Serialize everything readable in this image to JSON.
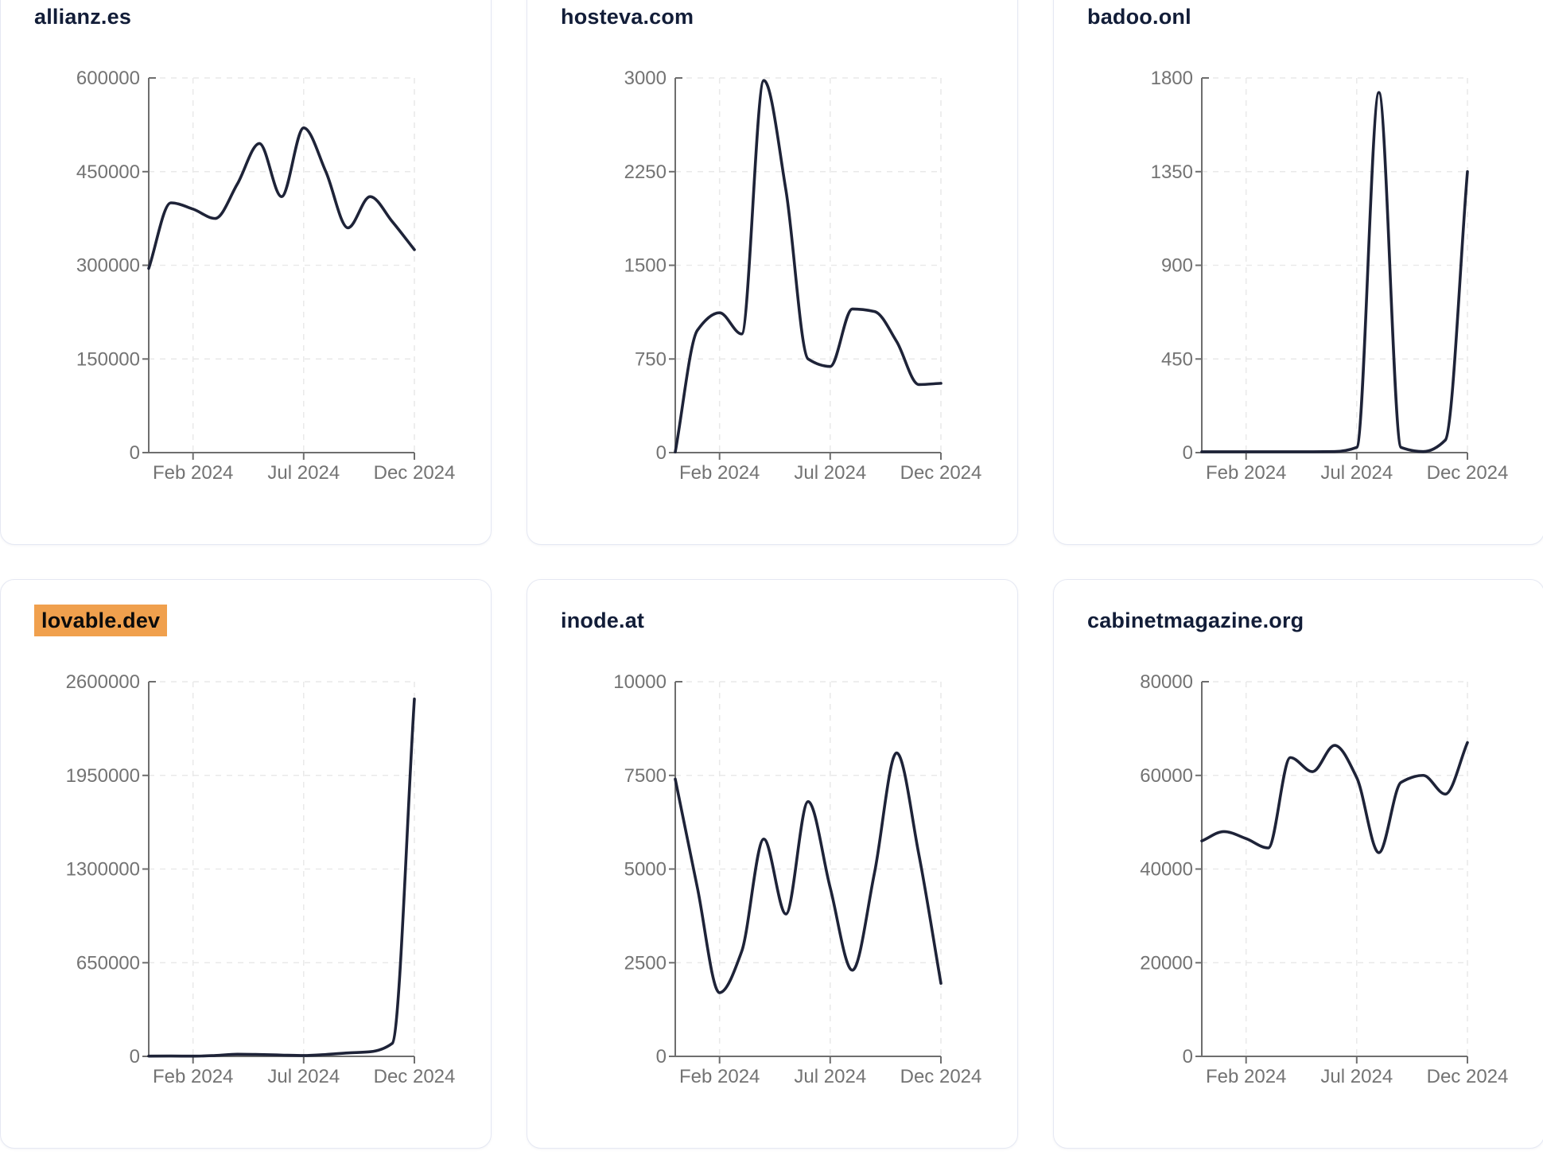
{
  "page": {
    "background": "#ffffff"
  },
  "theme": {
    "card_background": "#ffffff",
    "card_border": "#e5e8f3",
    "title_color": "#121d38",
    "line_color": "#1e2338",
    "axis_color": "#6e6e6e",
    "tick_label_color": "#737373",
    "grid_color": "#e9e9e9",
    "highlight_background": "#f0a04d",
    "highlight_text": "#0c0c0c"
  },
  "chart_data": [
    {
      "type": "line",
      "title": "allianz.es",
      "highlighted": false,
      "x": [
        "Dec 2023",
        "Jan 2024",
        "Feb 2024",
        "Mar 2024",
        "Apr 2024",
        "May 2024",
        "Jun 2024",
        "Jul 2024",
        "Aug 2024",
        "Sep 2024",
        "Oct 2024",
        "Nov 2024",
        "Dec 2024"
      ],
      "values": [
        295000,
        400000,
        390000,
        375000,
        430000,
        495000,
        410000,
        520000,
        450000,
        360000,
        410000,
        370000,
        325000
      ],
      "ylim": [
        0,
        600000
      ],
      "y_ticks": [
        0,
        150000,
        300000,
        450000,
        600000
      ],
      "x_tick_labels": [
        "Feb 2024",
        "Jul 2024",
        "Dec 2024"
      ],
      "x_tick_index": [
        2,
        7,
        12
      ],
      "grid": true
    },
    {
      "type": "line",
      "title": "hosteva.com",
      "highlighted": false,
      "x": [
        "Dec 2023",
        "Jan 2024",
        "Feb 2024",
        "Mar 2024",
        "Apr 2024",
        "May 2024",
        "Jun 2024",
        "Jul 2024",
        "Aug 2024",
        "Sep 2024",
        "Oct 2024",
        "Nov 2024",
        "Dec 2024"
      ],
      "values": [
        5,
        980,
        1120,
        950,
        2980,
        2100,
        750,
        690,
        1150,
        1130,
        890,
        545,
        555
      ],
      "ylim": [
        0,
        3000
      ],
      "y_ticks": [
        0,
        750,
        1500,
        2250,
        3000
      ],
      "x_tick_labels": [
        "Feb 2024",
        "Jul 2024",
        "Dec 2024"
      ],
      "x_tick_index": [
        2,
        7,
        12
      ],
      "grid": true
    },
    {
      "type": "line",
      "title": "badoo.onl",
      "highlighted": false,
      "x": [
        "Dec 2023",
        "Jan 2024",
        "Feb 2024",
        "Mar 2024",
        "Apr 2024",
        "May 2024",
        "Jun 2024",
        "Jul 2024",
        "Aug 2024",
        "Sep 2024",
        "Oct 2024",
        "Nov 2024",
        "Dec 2024"
      ],
      "values": [
        4,
        4,
        4,
        4,
        4,
        4,
        5,
        25,
        1730,
        25,
        5,
        60,
        1350
      ],
      "ylim": [
        0,
        1800
      ],
      "y_ticks": [
        0,
        450,
        900,
        1350,
        1800
      ],
      "x_tick_labels": [
        "Feb 2024",
        "Jul 2024",
        "Dec 2024"
      ],
      "x_tick_index": [
        2,
        7,
        12
      ],
      "grid": true
    },
    {
      "type": "line",
      "title": "lovable.dev",
      "highlighted": true,
      "x": [
        "Dec 2023",
        "Jan 2024",
        "Feb 2024",
        "Mar 2024",
        "Apr 2024",
        "May 2024",
        "Jun 2024",
        "Jul 2024",
        "Aug 2024",
        "Sep 2024",
        "Oct 2024",
        "Nov 2024",
        "Dec 2024"
      ],
      "values": [
        2000,
        2500,
        1500,
        6000,
        15000,
        13000,
        9000,
        6000,
        13000,
        24000,
        32000,
        90000,
        2480000
      ],
      "ylim": [
        0,
        2600000
      ],
      "y_ticks": [
        0,
        650000,
        1300000,
        1950000,
        2600000
      ],
      "x_tick_labels": [
        "Feb 2024",
        "Jul 2024",
        "Dec 2024"
      ],
      "x_tick_index": [
        2,
        7,
        12
      ],
      "grid": true
    },
    {
      "type": "line",
      "title": "inode.at",
      "highlighted": false,
      "x": [
        "Dec 2023",
        "Jan 2024",
        "Feb 2024",
        "Mar 2024",
        "Apr 2024",
        "May 2024",
        "Jun 2024",
        "Jul 2024",
        "Aug 2024",
        "Sep 2024",
        "Oct 2024",
        "Nov 2024",
        "Dec 2024"
      ],
      "values": [
        7400,
        4500,
        1700,
        2800,
        5800,
        3800,
        6800,
        4500,
        2300,
        4900,
        8100,
        5400,
        1950
      ],
      "ylim": [
        0,
        10000
      ],
      "y_ticks": [
        0,
        2500,
        5000,
        7500,
        10000
      ],
      "x_tick_labels": [
        "Feb 2024",
        "Jul 2024",
        "Dec 2024"
      ],
      "x_tick_index": [
        2,
        7,
        12
      ],
      "grid": true
    },
    {
      "type": "line",
      "title": "cabinetmagazine.org",
      "highlighted": false,
      "x": [
        "Dec 2023",
        "Jan 2024",
        "Feb 2024",
        "Mar 2024",
        "Apr 2024",
        "May 2024",
        "Jun 2024",
        "Jul 2024",
        "Aug 2024",
        "Sep 2024",
        "Oct 2024",
        "Nov 2024",
        "Dec 2024"
      ],
      "values": [
        46000,
        48000,
        46500,
        44500,
        63800,
        60800,
        66400,
        59500,
        43500,
        58500,
        60000,
        56000,
        67000
      ],
      "ylim": [
        0,
        80000
      ],
      "y_ticks": [
        0,
        20000,
        40000,
        60000,
        80000
      ],
      "x_tick_labels": [
        "Feb 2024",
        "Jul 2024",
        "Dec 2024"
      ],
      "x_tick_index": [
        2,
        7,
        12
      ],
      "grid": true
    }
  ]
}
